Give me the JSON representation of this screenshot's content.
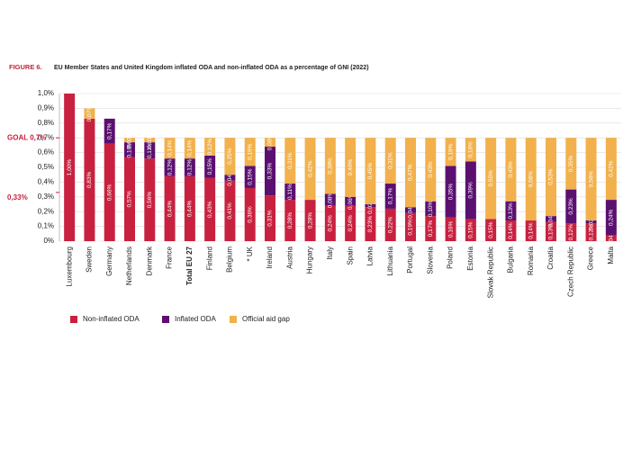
{
  "chart_data": {
    "type": "stacked_bar",
    "figure_label": "FIGURE 6.",
    "title": "EU Member States and United Kingdom inflated ODA and non-inflated ODA as a percentage of GNI (2022)",
    "categories": [
      "Luxembourg",
      "Sweden",
      "Germany",
      "Netherlands",
      "Denmark",
      "France",
      "Total EU 27",
      "Finland",
      "Belgium",
      "* UK",
      "Ireland",
      "Austria",
      "Hungary",
      "Italy",
      "Spain",
      "Latvia",
      "Lithuania",
      "Portugal",
      "Slovenia",
      "Poland",
      "Estonia",
      "Slovak Republic",
      "Bulgaria",
      "Romania",
      "Croatia",
      "Czech Republic",
      "Greece",
      "Malta"
    ],
    "series": [
      {
        "name": "Non-inflated ODA",
        "color": "#c8213f",
        "values": [
          1.0,
          0.83,
          0.66,
          0.57,
          0.56,
          0.44,
          0.44,
          0.43,
          0.41,
          0.36,
          0.31,
          0.28,
          0.28,
          0.24,
          0.24,
          0.23,
          0.22,
          0.19,
          0.17,
          0.16,
          0.15,
          0.15,
          0.14,
          0.14,
          0.13,
          0.12,
          0.12,
          0.04
        ],
        "value_labels": [
          "1,00%",
          "0,83%",
          "0,66%",
          "0,57%",
          "0,56%",
          "0,44%",
          "0,44%",
          "0,43%",
          "0,41%",
          "0,36%",
          "0,31%",
          "0,28%",
          "0,28%",
          "0,24%",
          "0,24%",
          "0,23%",
          "0,22%",
          "0,19%",
          "0,17%",
          "0,16%",
          "0,15%",
          "0,15%",
          "0,14%",
          "0,14%",
          "0,13%",
          "0,12%",
          "0,12%",
          "0,04%"
        ]
      },
      {
        "name": "Inflated ODA",
        "color": "#5b1070",
        "values": [
          null,
          null,
          0.17,
          0.1,
          0.11,
          0.12,
          0.12,
          0.15,
          0.04,
          0.15,
          0.33,
          0.11,
          null,
          0.08,
          0.06,
          0.02,
          0.17,
          0.04,
          0.1,
          0.35,
          0.39,
          null,
          0.13,
          null,
          0.04,
          0.23,
          0.02,
          0.24
        ],
        "value_labels": [
          null,
          null,
          "0,17%",
          "0,10%",
          "0,11%",
          "0,12%",
          "0,12%",
          "0,15%",
          "0,04%",
          "0,15%",
          "0,33%",
          "0,11%",
          null,
          "0,08%",
          "0,06%",
          "0,02%",
          "0,17%",
          "0,04%",
          "0,10%",
          "0,35%",
          "0,39%",
          null,
          "0,13%",
          null,
          "0,04%",
          "0,23%",
          "0,02%",
          "0,24%"
        ]
      },
      {
        "name": "Official aid gap",
        "color": "#f2b14c",
        "values": [
          null,
          0.07,
          null,
          0.03,
          0.03,
          0.14,
          0.14,
          0.12,
          0.25,
          0.19,
          0.06,
          0.31,
          0.42,
          0.38,
          0.4,
          0.45,
          0.31,
          0.47,
          0.43,
          0.19,
          0.16,
          0.55,
          0.43,
          0.56,
          0.53,
          0.35,
          0.56,
          0.42
        ],
        "value_labels": [
          null,
          "0,07%",
          null,
          "0,03%",
          "0,03%",
          "0,14%",
          "0,14%",
          "0,12%",
          "0,25%",
          "0,19%",
          "0,06%",
          "0,31%",
          "0,42%",
          "0,38%",
          "0,40%",
          "0,45%",
          "0,31%",
          "0,47%",
          "0,43%",
          "0,19%",
          "0,16%",
          "0,55%",
          "0,43%",
          "0,56%",
          "0,53%",
          "0,35%",
          "0,56%",
          "0,42%"
        ]
      }
    ],
    "ylim": [
      0,
      1.0
    ],
    "yticks": [
      {
        "value": 0,
        "label": "0%"
      },
      {
        "value": 0.1,
        "label": "0,1%"
      },
      {
        "value": 0.2,
        "label": "0,2%"
      },
      {
        "value": 0.3,
        "label": "0,3%"
      },
      {
        "value": 0.4,
        "label": "0,4%"
      },
      {
        "value": 0.5,
        "label": "0,5%"
      },
      {
        "value": 0.6,
        "label": "0,6%"
      },
      {
        "value": 0.7,
        "label": "0,7%"
      },
      {
        "value": 0.8,
        "label": "0,8%"
      },
      {
        "value": 0.9,
        "label": "0,9%"
      },
      {
        "value": 1.0,
        "label": "1,0%"
      }
    ],
    "annotations": [
      {
        "value": 0.7,
        "label": "GOAL 0,7%"
      },
      {
        "value": 0.33,
        "label": "0,33%"
      }
    ],
    "grid": true,
    "annotation_color": "#c8213f"
  }
}
